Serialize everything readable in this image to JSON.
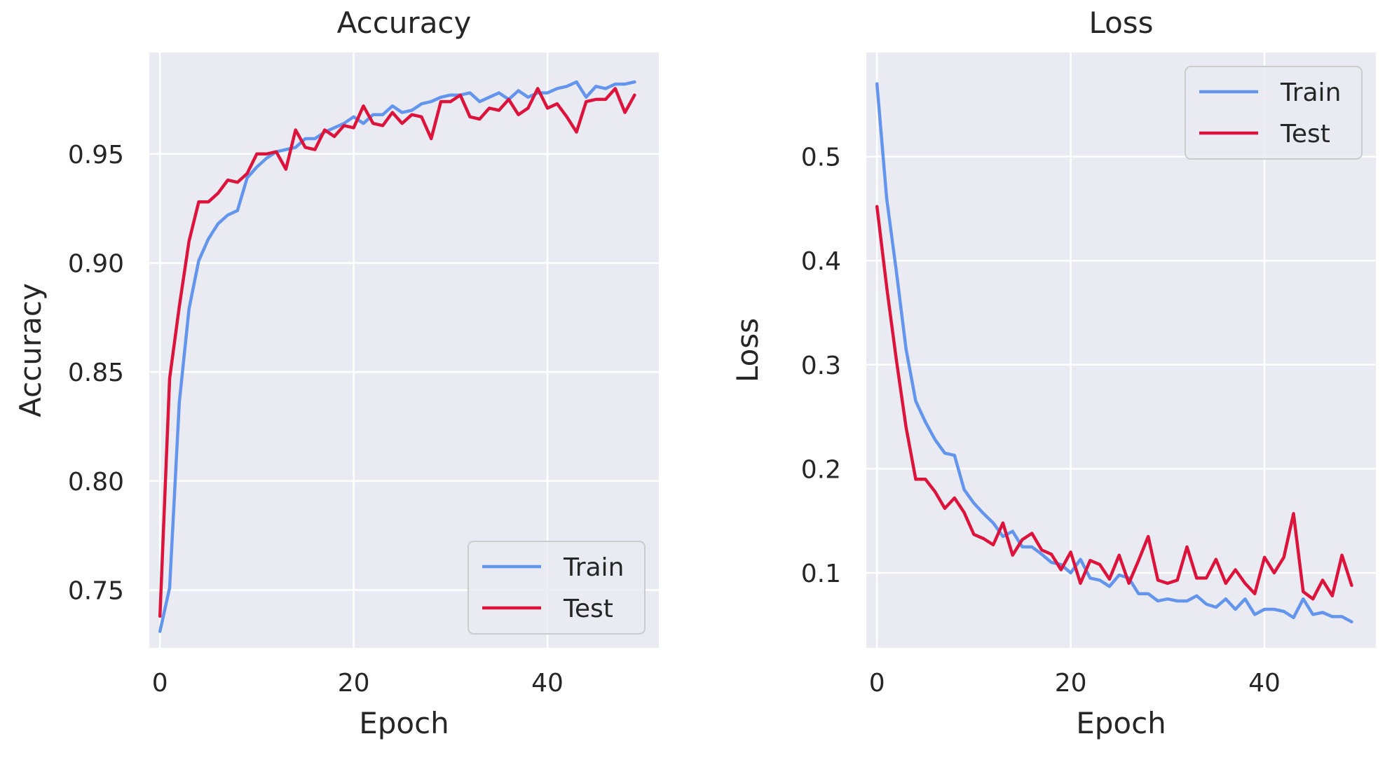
{
  "chart_data": [
    {
      "type": "line",
      "title": "Accuracy",
      "xlabel": "Epoch",
      "ylabel": "Accuracy",
      "xlim": [
        -1.1,
        51.5
      ],
      "ylim": [
        0.7235,
        0.9965
      ],
      "xticks": [
        0,
        20,
        40
      ],
      "yticks": [
        0.75,
        0.8,
        0.85,
        0.9,
        0.95
      ],
      "ytick_labels": [
        "0.75",
        "0.80",
        "0.85",
        "0.90",
        "0.95"
      ],
      "grid": true,
      "legend_position": "lower-right",
      "x": [
        0,
        1,
        2,
        3,
        4,
        5,
        6,
        7,
        8,
        9,
        10,
        11,
        12,
        13,
        14,
        15,
        16,
        17,
        18,
        19,
        20,
        21,
        22,
        23,
        24,
        25,
        26,
        27,
        28,
        29,
        30,
        31,
        32,
        33,
        34,
        35,
        36,
        37,
        38,
        39,
        40,
        41,
        42,
        43,
        44,
        45,
        46,
        47,
        48,
        49
      ],
      "series": [
        {
          "name": "Train",
          "color": "#6495ed",
          "values": [
            0.731,
            0.751,
            0.836,
            0.879,
            0.901,
            0.911,
            0.918,
            0.922,
            0.924,
            0.939,
            0.944,
            0.948,
            0.951,
            0.952,
            0.953,
            0.957,
            0.957,
            0.96,
            0.962,
            0.964,
            0.967,
            0.964,
            0.968,
            0.968,
            0.972,
            0.969,
            0.97,
            0.973,
            0.974,
            0.976,
            0.977,
            0.977,
            0.978,
            0.974,
            0.976,
            0.978,
            0.975,
            0.979,
            0.976,
            0.978,
            0.978,
            0.98,
            0.981,
            0.983,
            0.976,
            0.981,
            0.98,
            0.982,
            0.982,
            0.983
          ]
        },
        {
          "name": "Test",
          "color": "#dc143c",
          "values": [
            0.738,
            0.847,
            0.88,
            0.91,
            0.928,
            0.928,
            0.932,
            0.938,
            0.937,
            0.941,
            0.95,
            0.95,
            0.951,
            0.943,
            0.961,
            0.953,
            0.952,
            0.961,
            0.958,
            0.963,
            0.962,
            0.972,
            0.964,
            0.963,
            0.969,
            0.964,
            0.968,
            0.967,
            0.957,
            0.974,
            0.974,
            0.977,
            0.967,
            0.966,
            0.971,
            0.97,
            0.975,
            0.968,
            0.971,
            0.98,
            0.971,
            0.973,
            0.967,
            0.96,
            0.974,
            0.975,
            0.975,
            0.98,
            0.969,
            0.977
          ]
        }
      ]
    },
    {
      "type": "line",
      "title": "Loss",
      "xlabel": "Epoch",
      "ylabel": "Loss",
      "xlim": [
        -1.1,
        51.5
      ],
      "ylim": [
        0.028,
        0.6
      ],
      "xticks": [
        0,
        20,
        40
      ],
      "yticks": [
        0.1,
        0.2,
        0.3,
        0.4,
        0.5
      ],
      "ytick_labels": [
        "0.1",
        "0.2",
        "0.3",
        "0.4",
        "0.5"
      ],
      "grid": true,
      "legend_position": "upper-right",
      "x": [
        0,
        1,
        2,
        3,
        4,
        5,
        6,
        7,
        8,
        9,
        10,
        11,
        12,
        13,
        14,
        15,
        16,
        17,
        18,
        19,
        20,
        21,
        22,
        23,
        24,
        25,
        26,
        27,
        28,
        29,
        30,
        31,
        32,
        33,
        34,
        35,
        36,
        37,
        38,
        39,
        40,
        41,
        42,
        43,
        44,
        45,
        46,
        47,
        48,
        49
      ],
      "series": [
        {
          "name": "Train",
          "color": "#6495ed",
          "values": [
            0.57,
            0.46,
            0.39,
            0.315,
            0.265,
            0.245,
            0.228,
            0.215,
            0.213,
            0.18,
            0.167,
            0.157,
            0.148,
            0.135,
            0.14,
            0.125,
            0.125,
            0.118,
            0.11,
            0.108,
            0.1,
            0.113,
            0.095,
            0.093,
            0.087,
            0.098,
            0.095,
            0.08,
            0.08,
            0.073,
            0.075,
            0.073,
            0.073,
            0.078,
            0.07,
            0.067,
            0.075,
            0.065,
            0.075,
            0.06,
            0.065,
            0.065,
            0.063,
            0.057,
            0.075,
            0.06,
            0.062,
            0.058,
            0.058,
            0.053
          ]
        },
        {
          "name": "Test",
          "color": "#dc143c",
          "values": [
            0.452,
            0.375,
            0.305,
            0.24,
            0.19,
            0.19,
            0.178,
            0.162,
            0.172,
            0.158,
            0.137,
            0.133,
            0.127,
            0.148,
            0.117,
            0.132,
            0.138,
            0.122,
            0.118,
            0.103,
            0.12,
            0.09,
            0.112,
            0.108,
            0.094,
            0.117,
            0.09,
            0.112,
            0.135,
            0.093,
            0.09,
            0.093,
            0.125,
            0.095,
            0.095,
            0.113,
            0.09,
            0.103,
            0.09,
            0.08,
            0.115,
            0.1,
            0.115,
            0.157,
            0.082,
            0.075,
            0.093,
            0.078,
            0.117,
            0.088
          ]
        }
      ]
    }
  ]
}
